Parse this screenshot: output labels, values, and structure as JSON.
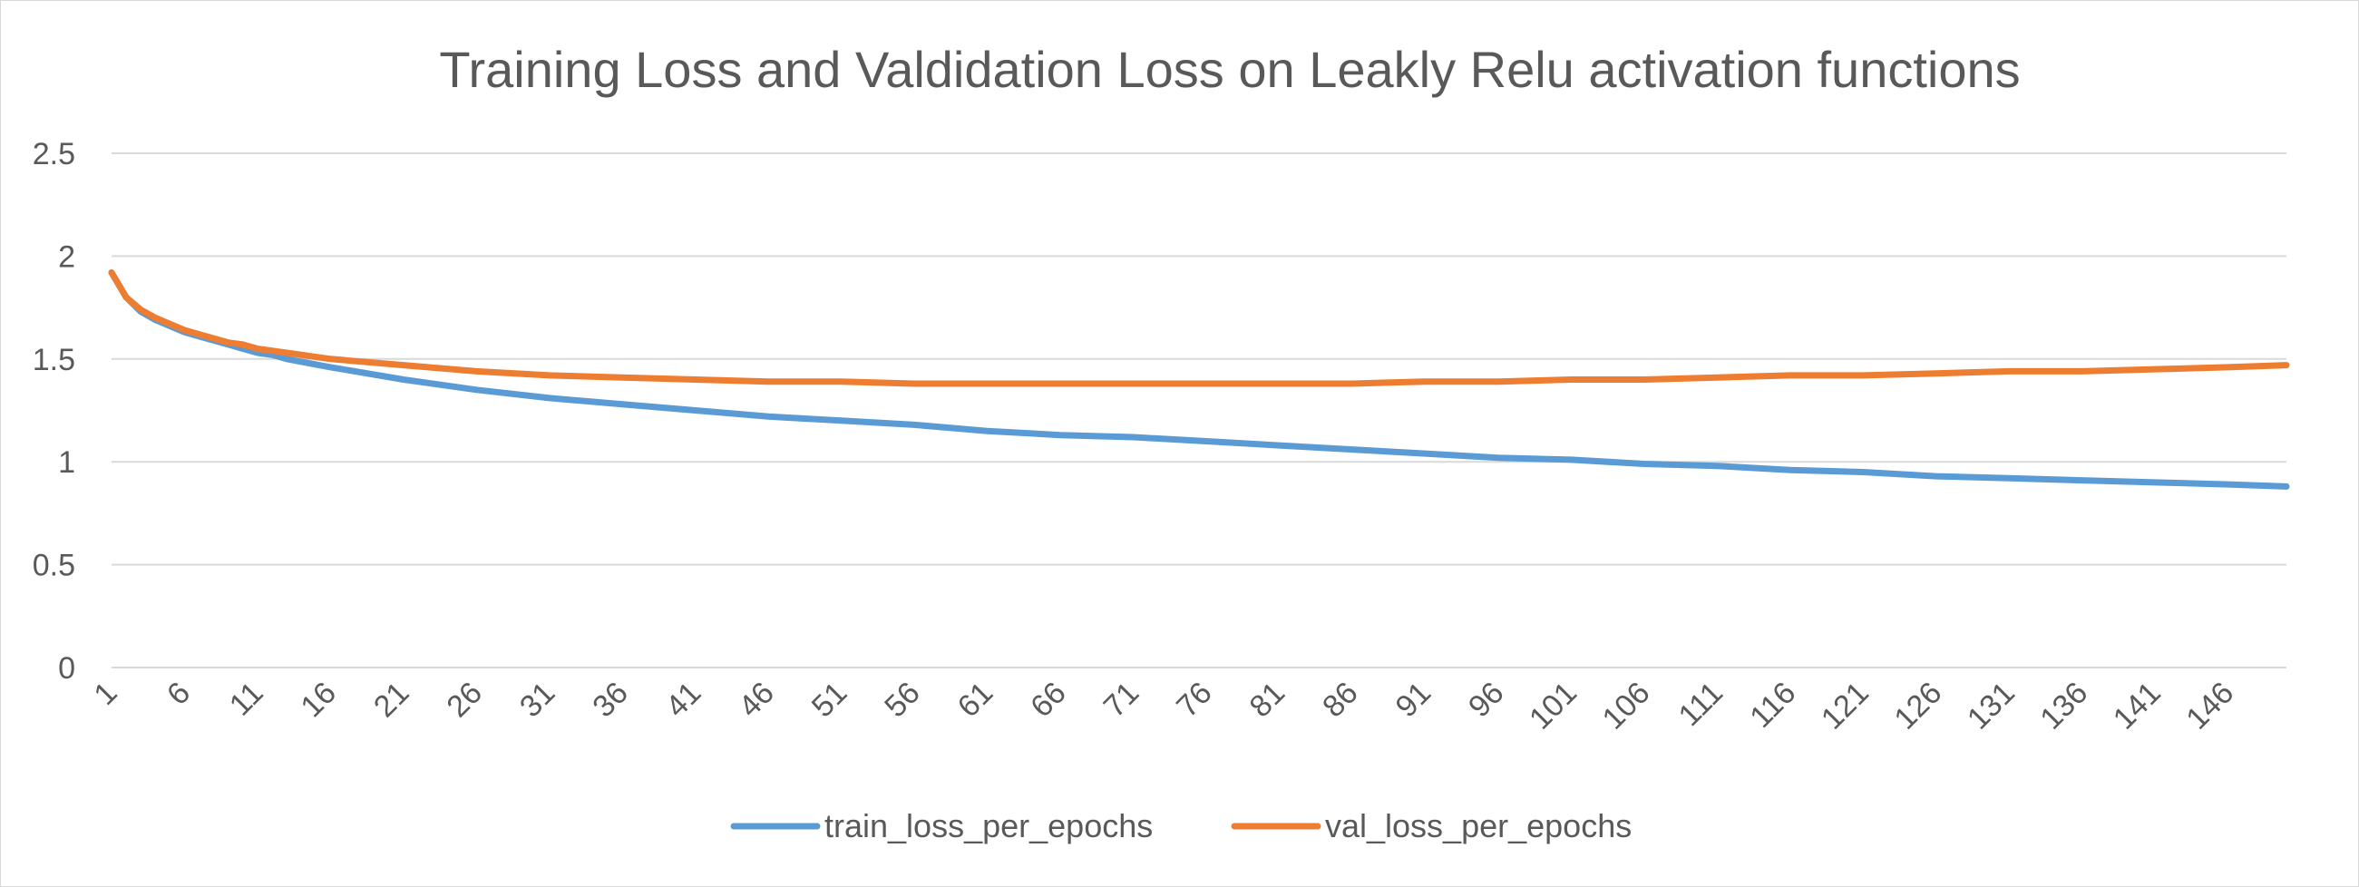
{
  "chart_data": {
    "type": "line",
    "title": "Training Loss and Valdidation Loss on Leakly Relu activation functions",
    "xlabel": "",
    "ylabel": "",
    "ylim": [
      0,
      2.5
    ],
    "yticks": [
      "0",
      "0.5",
      "1",
      "1.5",
      "2",
      "2.5"
    ],
    "xticks": [
      "1",
      "6",
      "11",
      "16",
      "21",
      "26",
      "31",
      "36",
      "41",
      "46",
      "51",
      "56",
      "61",
      "66",
      "71",
      "76",
      "81",
      "86",
      "91",
      "96",
      "101",
      "106",
      "111",
      "116",
      "121",
      "126",
      "131",
      "136",
      "141",
      "146"
    ],
    "grid": true,
    "legend_position": "bottom",
    "x_range": [
      1,
      150
    ],
    "series": [
      {
        "name": "train_loss_per_epochs",
        "color": "#5b9bd5",
        "points": [
          [
            1,
            1.92
          ],
          [
            2,
            1.8
          ],
          [
            3,
            1.73
          ],
          [
            4,
            1.69
          ],
          [
            5,
            1.66
          ],
          [
            6,
            1.63
          ],
          [
            7,
            1.61
          ],
          [
            8,
            1.59
          ],
          [
            9,
            1.57
          ],
          [
            10,
            1.55
          ],
          [
            11,
            1.53
          ],
          [
            12,
            1.52
          ],
          [
            13,
            1.5
          ],
          [
            16,
            1.46
          ],
          [
            21,
            1.4
          ],
          [
            26,
            1.35
          ],
          [
            31,
            1.31
          ],
          [
            36,
            1.28
          ],
          [
            41,
            1.25
          ],
          [
            46,
            1.22
          ],
          [
            51,
            1.2
          ],
          [
            56,
            1.18
          ],
          [
            61,
            1.15
          ],
          [
            66,
            1.13
          ],
          [
            71,
            1.12
          ],
          [
            76,
            1.1
          ],
          [
            81,
            1.08
          ],
          [
            86,
            1.06
          ],
          [
            91,
            1.04
          ],
          [
            96,
            1.02
          ],
          [
            101,
            1.01
          ],
          [
            106,
            0.99
          ],
          [
            111,
            0.98
          ],
          [
            116,
            0.96
          ],
          [
            121,
            0.95
          ],
          [
            126,
            0.93
          ],
          [
            131,
            0.92
          ],
          [
            136,
            0.91
          ],
          [
            141,
            0.9
          ],
          [
            146,
            0.89
          ],
          [
            150,
            0.88
          ]
        ]
      },
      {
        "name": "val_loss_per_epochs",
        "color": "#ed7d31",
        "points": [
          [
            1,
            1.92
          ],
          [
            2,
            1.8
          ],
          [
            3,
            1.74
          ],
          [
            4,
            1.7
          ],
          [
            5,
            1.67
          ],
          [
            6,
            1.64
          ],
          [
            7,
            1.62
          ],
          [
            8,
            1.6
          ],
          [
            9,
            1.58
          ],
          [
            10,
            1.57
          ],
          [
            11,
            1.55
          ],
          [
            12,
            1.54
          ],
          [
            13,
            1.53
          ],
          [
            16,
            1.5
          ],
          [
            21,
            1.47
          ],
          [
            26,
            1.44
          ],
          [
            31,
            1.42
          ],
          [
            36,
            1.41
          ],
          [
            41,
            1.4
          ],
          [
            46,
            1.39
          ],
          [
            51,
            1.39
          ],
          [
            56,
            1.38
          ],
          [
            61,
            1.38
          ],
          [
            66,
            1.38
          ],
          [
            71,
            1.38
          ],
          [
            76,
            1.38
          ],
          [
            81,
            1.38
          ],
          [
            86,
            1.38
          ],
          [
            91,
            1.39
          ],
          [
            96,
            1.39
          ],
          [
            101,
            1.4
          ],
          [
            106,
            1.4
          ],
          [
            111,
            1.41
          ],
          [
            116,
            1.42
          ],
          [
            121,
            1.42
          ],
          [
            126,
            1.43
          ],
          [
            131,
            1.44
          ],
          [
            136,
            1.44
          ],
          [
            141,
            1.45
          ],
          [
            146,
            1.46
          ],
          [
            150,
            1.47
          ]
        ]
      }
    ]
  }
}
